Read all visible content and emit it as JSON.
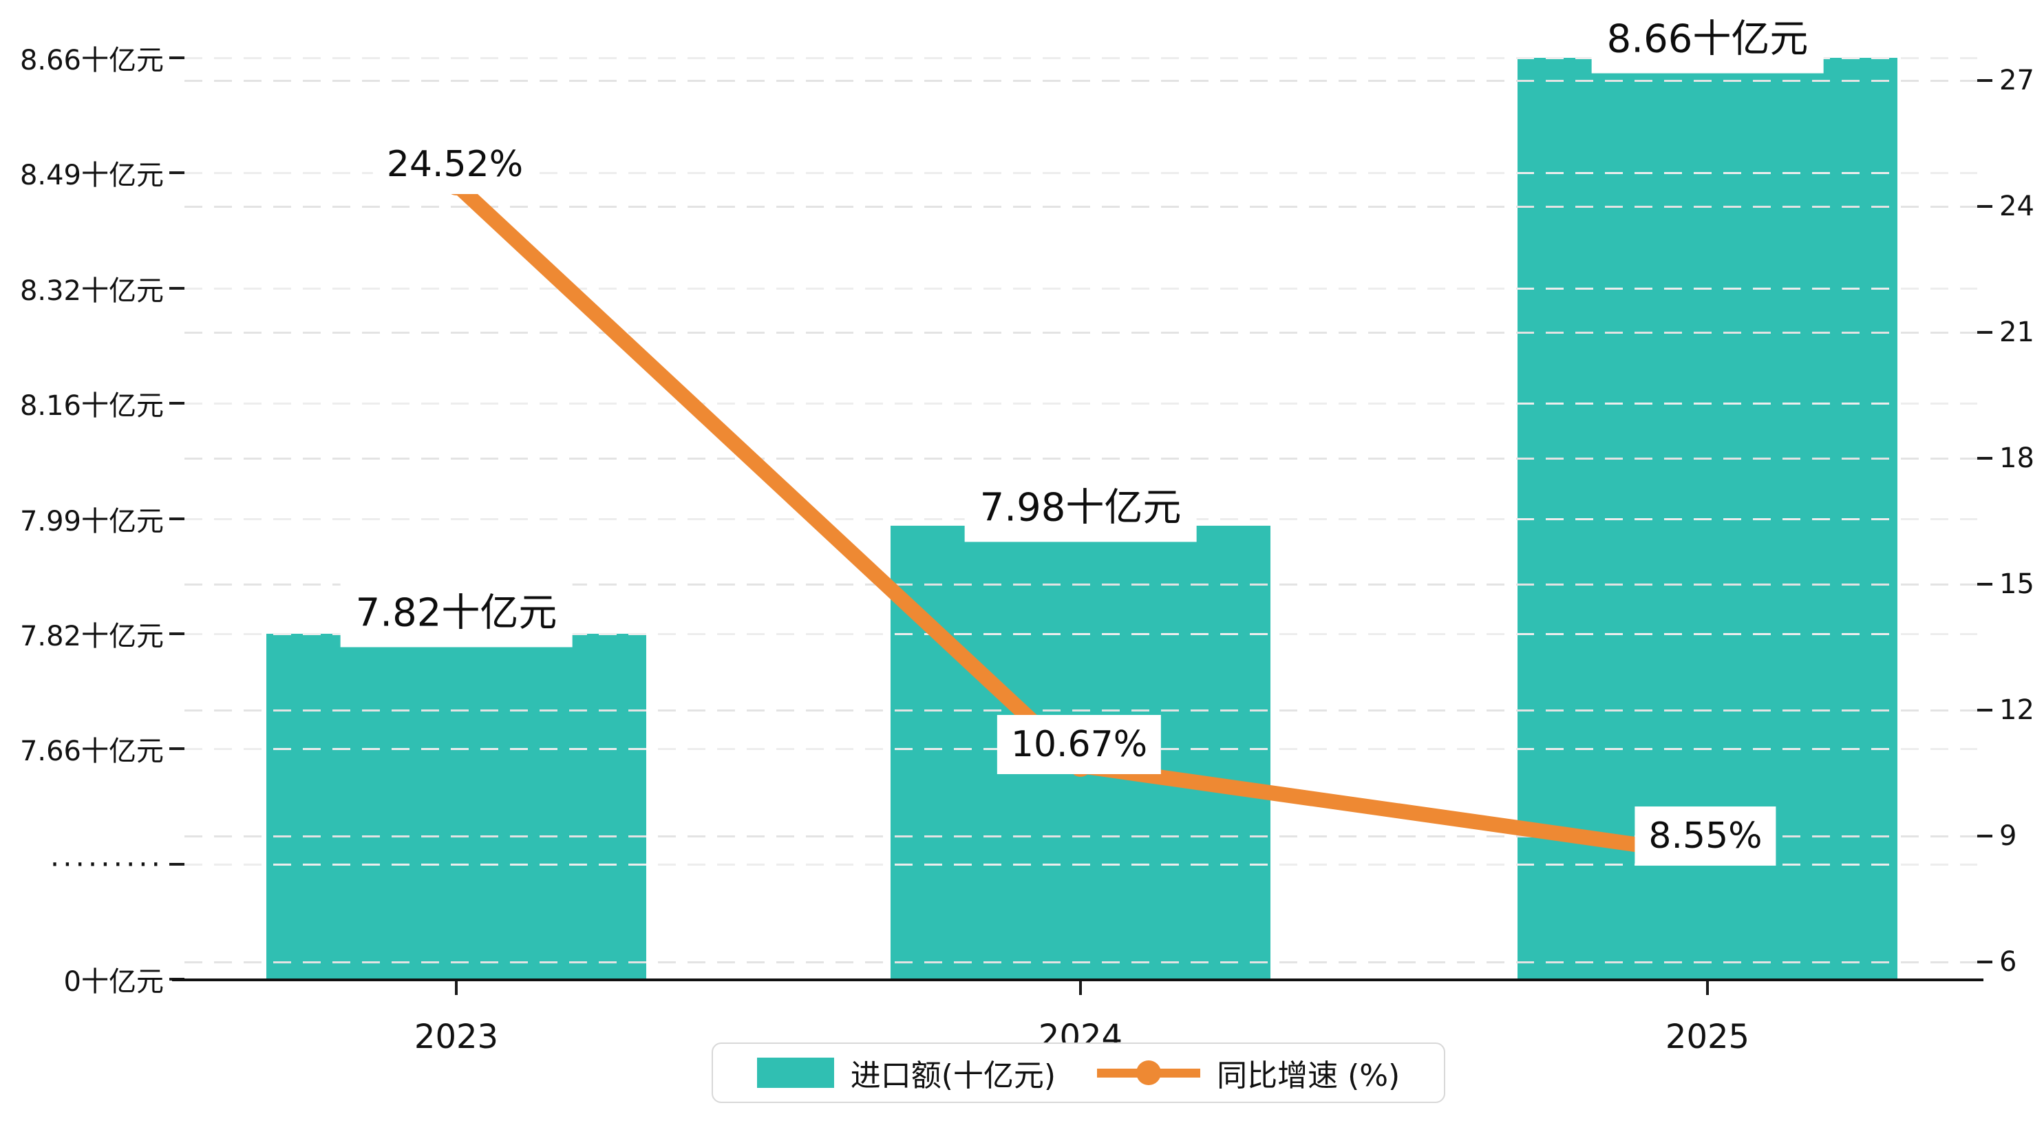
{
  "chart_data": {
    "type": "bar",
    "title": "",
    "categories": [
      "2023",
      "2024",
      "2025"
    ],
    "series": [
      {
        "name": "进口额(十亿元)",
        "type": "bar",
        "values": [
          7.82,
          7.98,
          8.66
        ],
        "value_labels": [
          "7.82十亿元",
          "7.98十亿元",
          "8.66十亿元"
        ],
        "color": "#30BFB2"
      },
      {
        "name": "同比增速 (%)",
        "type": "line",
        "values": [
          24.52,
          10.67,
          8.55
        ],
        "value_labels": [
          "24.52%",
          "10.67%",
          "8.55%"
        ],
        "color": "#EE8933"
      }
    ],
    "left_axis": {
      "tick_labels": [
        "0十亿元",
        "·········",
        "7.66十亿元",
        "7.82十亿元",
        "7.99十亿元",
        "8.16十亿元",
        "8.32十亿元",
        "8.49十亿元",
        "8.66十亿元"
      ],
      "broken_axis_note": "dotted label marks axis break between 0 and 7.66",
      "grid": true
    },
    "right_axis": {
      "tick_labels": [
        "6",
        "9",
        "12",
        "15",
        "18",
        "21",
        "24",
        "27"
      ],
      "grid": true
    },
    "legend": {
      "position": "bottom-center",
      "items": [
        "进口额(十亿元)",
        "同比增速 (%)"
      ]
    },
    "colors": {
      "bar": "#30BFB2",
      "line": "#EE8933",
      "grid_left": "#EDEDED",
      "grid_right": "#E3E3E3",
      "axis": "#111111",
      "background": "#FFFFFF"
    }
  }
}
